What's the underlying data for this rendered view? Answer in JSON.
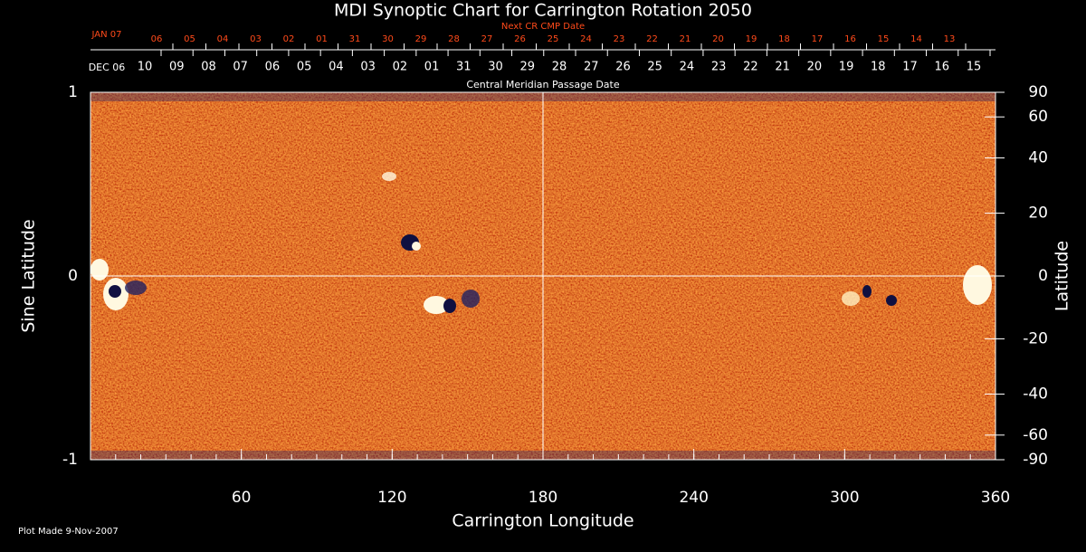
{
  "chart_data": {
    "type": "synoptic-map",
    "title": "MDI Synoptic Chart for Carrington Rotation 2050",
    "xlabel": "Carrington Longitude",
    "ylabel": "Sine Latitude",
    "y2label": "Latitude",
    "xlim": [
      0,
      360
    ],
    "xticks": [
      60,
      120,
      180,
      240,
      300,
      360
    ],
    "ylim": [
      -1,
      1
    ],
    "yticks": [
      -1,
      0,
      1
    ],
    "y2lim": [
      -90,
      90
    ],
    "y2scale": "sine",
    "y2ticks": [
      90,
      60,
      40,
      20,
      0,
      -20,
      -40,
      -60,
      -90
    ],
    "grid": true,
    "top_axis_label": "Central Meridian Passage Date",
    "cmp_start": "DEC 06",
    "cmp_dates": [
      "10",
      "09",
      "08",
      "07",
      "06",
      "05",
      "04",
      "03",
      "02",
      "01",
      "31",
      "30",
      "29",
      "28",
      "27",
      "26",
      "25",
      "24",
      "23",
      "22",
      "21",
      "20",
      "19",
      "18",
      "17",
      "16",
      "15"
    ],
    "next_axis_label": "Next CR CMP Date",
    "next_start": "JAN 07",
    "next_dates": [
      "06",
      "05",
      "04",
      "03",
      "02",
      "01",
      "31",
      "30",
      "29",
      "28",
      "27",
      "26",
      "25",
      "24",
      "23",
      "22",
      "21",
      "20",
      "19",
      "18",
      "17",
      "16",
      "15",
      "14",
      "13"
    ],
    "footnote": "Plot Made  9-Nov-2007"
  }
}
